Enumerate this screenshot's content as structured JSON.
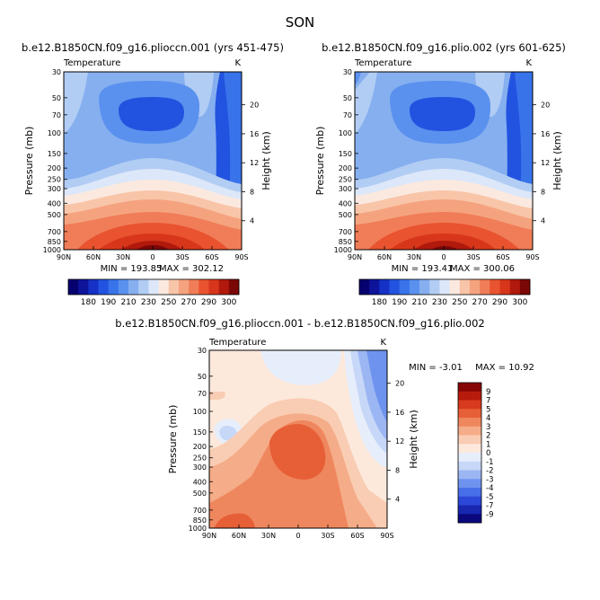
{
  "figure": {
    "season": "SON"
  },
  "colors": {
    "abs_scale": [
      "#07006f",
      "#0d149a",
      "#1631c5",
      "#2253e0",
      "#3873ea",
      "#5a91ef",
      "#86afef",
      "#b2cdf4",
      "#dce7f9",
      "#fbe9df",
      "#f8c5a9",
      "#f5a37f",
      "#f07d58",
      "#e9532f",
      "#d8361b",
      "#b0190c",
      "#7c0707"
    ],
    "diff_scale": [
      "#0a087c",
      "#1826b0",
      "#2c48d8",
      "#476fe8",
      "#6e93ef",
      "#9bb6f3",
      "#c7d7f7",
      "#e7eefb",
      "#fde9dc",
      "#f9cdb3",
      "#f5ac88",
      "#ef875e",
      "#e75f37",
      "#d83a1e",
      "#b71b0d",
      "#860505"
    ]
  },
  "panel_left": {
    "title": "b.e12.B1850CN.f09_g16.plioccn.001 (yrs 451-475)",
    "variable": "Temperature",
    "units": "K",
    "min_label": "MIN = 193.85",
    "max_label": "MAX = 302.12"
  },
  "panel_right": {
    "title": "b.e12.B1850CN.f09_g16.plio.002 (yrs 601-625)",
    "variable": "Temperature",
    "units": "K",
    "min_label": "MIN = 193.41",
    "max_label": "MAX = 300.06"
  },
  "panel_diff": {
    "title": "b.e12.B1850CN.f09_g16.plioccn.001 - b.e12.B1850CN.f09_g16.plio.002",
    "variable": "Temperature",
    "units": "K",
    "min_label": "MIN = -3.01",
    "max_label": "MAX = 10.92"
  },
  "chart_data": [
    {
      "type": "contour",
      "title": "b.e12.B1850CN.f09_g16.plioccn.001 (yrs 451-475)",
      "xlabel": "",
      "ylabel": "Pressure (mb)",
      "y2label": "Height (km)",
      "x_ticks": [
        "90N",
        "60N",
        "30N",
        "0",
        "30S",
        "60S",
        "90S"
      ],
      "x_tick_values": [
        90,
        60,
        30,
        0,
        -30,
        -60,
        -90
      ],
      "y_ticks": [
        "30",
        "50",
        "70",
        "100",
        "150",
        "200",
        "250",
        "300",
        "400",
        "500",
        "700",
        "850",
        "1000"
      ],
      "y_tick_values": [
        30,
        50,
        70,
        100,
        150,
        200,
        250,
        300,
        400,
        500,
        700,
        850,
        1000
      ],
      "y2_ticks": [
        "4",
        "8",
        "12",
        "16",
        "20"
      ],
      "levels": [
        180,
        190,
        210,
        230,
        250,
        270,
        290,
        300
      ],
      "colorbar_labels": [
        "180",
        "190",
        "210",
        "230",
        "250",
        "270",
        "290",
        "300"
      ],
      "min": 193.85,
      "max": 302.12
    },
    {
      "type": "contour",
      "title": "b.e12.B1850CN.f09_g16.plio.002 (yrs 601-625)",
      "xlabel": "",
      "ylabel": "Pressure (mb)",
      "y2label": "Height (km)",
      "x_ticks": [
        "90N",
        "60N",
        "30N",
        "0",
        "30S",
        "60S",
        "90S"
      ],
      "x_tick_values": [
        90,
        60,
        30,
        0,
        -30,
        -60,
        -90
      ],
      "y_ticks": [
        "30",
        "50",
        "70",
        "100",
        "150",
        "200",
        "250",
        "300",
        "400",
        "500",
        "700",
        "850",
        "1000"
      ],
      "y_tick_values": [
        30,
        50,
        70,
        100,
        150,
        200,
        250,
        300,
        400,
        500,
        700,
        850,
        1000
      ],
      "y2_ticks": [
        "4",
        "8",
        "12",
        "16",
        "20"
      ],
      "levels": [
        180,
        190,
        210,
        230,
        250,
        270,
        290,
        300
      ],
      "colorbar_labels": [
        "180",
        "190",
        "210",
        "230",
        "250",
        "270",
        "290",
        "300"
      ],
      "min": 193.41,
      "max": 300.06
    },
    {
      "type": "contour",
      "title": "b.e12.B1850CN.f09_g16.plioccn.001 - b.e12.B1850CN.f09_g16.plio.002",
      "xlabel": "",
      "ylabel": "Pressure (mb)",
      "y2label": "Height (km)",
      "x_ticks": [
        "90N",
        "60N",
        "30N",
        "0",
        "30S",
        "60S",
        "90S"
      ],
      "x_tick_values": [
        90,
        60,
        30,
        0,
        -30,
        -60,
        -90
      ],
      "y_ticks": [
        "30",
        "50",
        "70",
        "100",
        "150",
        "200",
        "250",
        "300",
        "400",
        "500",
        "700",
        "850",
        "1000"
      ],
      "y_tick_values": [
        30,
        50,
        70,
        100,
        150,
        200,
        250,
        300,
        400,
        500,
        700,
        850,
        1000
      ],
      "y2_ticks": [
        "4",
        "8",
        "12",
        "16",
        "20"
      ],
      "levels": [
        -9,
        -7,
        -5,
        -4,
        -3,
        -2,
        -1,
        0,
        1,
        2,
        3,
        4,
        5,
        7,
        9
      ],
      "colorbar_labels": [
        "9",
        "7",
        "5",
        "4",
        "3",
        "2",
        "1",
        "0",
        "-1",
        "-2",
        "-3",
        "-4",
        "-5",
        "-7",
        "-9"
      ],
      "min": -3.01,
      "max": 10.92
    }
  ]
}
